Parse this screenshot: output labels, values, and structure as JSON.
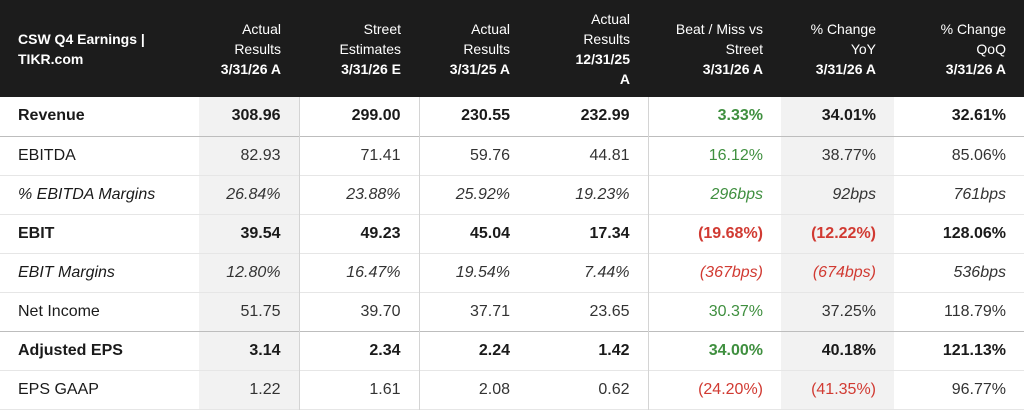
{
  "header": {
    "title": "CSW Q4 Earnings | TIKR.com",
    "columns": [
      {
        "lines": [
          "Actual",
          "Results"
        ],
        "date": "3/31/26 A"
      },
      {
        "lines": [
          "Street",
          "Estimates"
        ],
        "date": "3/31/26 E"
      },
      {
        "lines": [
          "Actual",
          "Results"
        ],
        "date": "3/31/25 A"
      },
      {
        "lines": [
          "Actual",
          "Results",
          "12/31/25"
        ],
        "date": "A"
      },
      {
        "lines": [
          "Beat / Miss vs",
          "Street"
        ],
        "date": "3/31/26 A"
      },
      {
        "lines": [
          "% Change",
          "YoY"
        ],
        "date": "3/31/26 A"
      },
      {
        "lines": [
          "% Change",
          "QoQ"
        ],
        "date": "3/31/26 A"
      }
    ]
  },
  "rows": [
    {
      "label": "Revenue",
      "values": [
        "308.96",
        "299.00",
        "230.55",
        "232.99",
        "3.33%",
        "34.01%",
        "32.61%"
      ]
    },
    {
      "label": "EBITDA",
      "values": [
        "82.93",
        "71.41",
        "59.76",
        "44.81",
        "16.12%",
        "38.77%",
        "85.06%"
      ]
    },
    {
      "label": "% EBITDA Margins",
      "values": [
        "26.84%",
        "23.88%",
        "25.92%",
        "19.23%",
        "296bps",
        "92bps",
        "761bps"
      ]
    },
    {
      "label": "EBIT",
      "values": [
        "39.54",
        "49.23",
        "45.04",
        "17.34",
        "(19.68%)",
        "(12.22%)",
        "128.06%"
      ]
    },
    {
      "label": "EBIT Margins",
      "values": [
        "12.80%",
        "16.47%",
        "19.54%",
        "7.44%",
        "(367bps)",
        "(674bps)",
        "536bps"
      ]
    },
    {
      "label": "Net Income",
      "values": [
        "51.75",
        "39.70",
        "37.71",
        "23.65",
        "30.37%",
        "37.25%",
        "118.79%"
      ]
    },
    {
      "label": "Adjusted EPS",
      "values": [
        "3.14",
        "2.34",
        "2.24",
        "1.42",
        "34.00%",
        "40.18%",
        "121.13%"
      ]
    },
    {
      "label": "EPS GAAP",
      "values": [
        "1.22",
        "1.61",
        "2.08",
        "0.62",
        "(24.20%)",
        "(41.35%)",
        "96.77%"
      ]
    }
  ],
  "colors": {
    "header_bg": "#1c1c1c",
    "positive": "#3f8f3f",
    "negative": "#d13a32",
    "shade": "#f2f2f2"
  }
}
